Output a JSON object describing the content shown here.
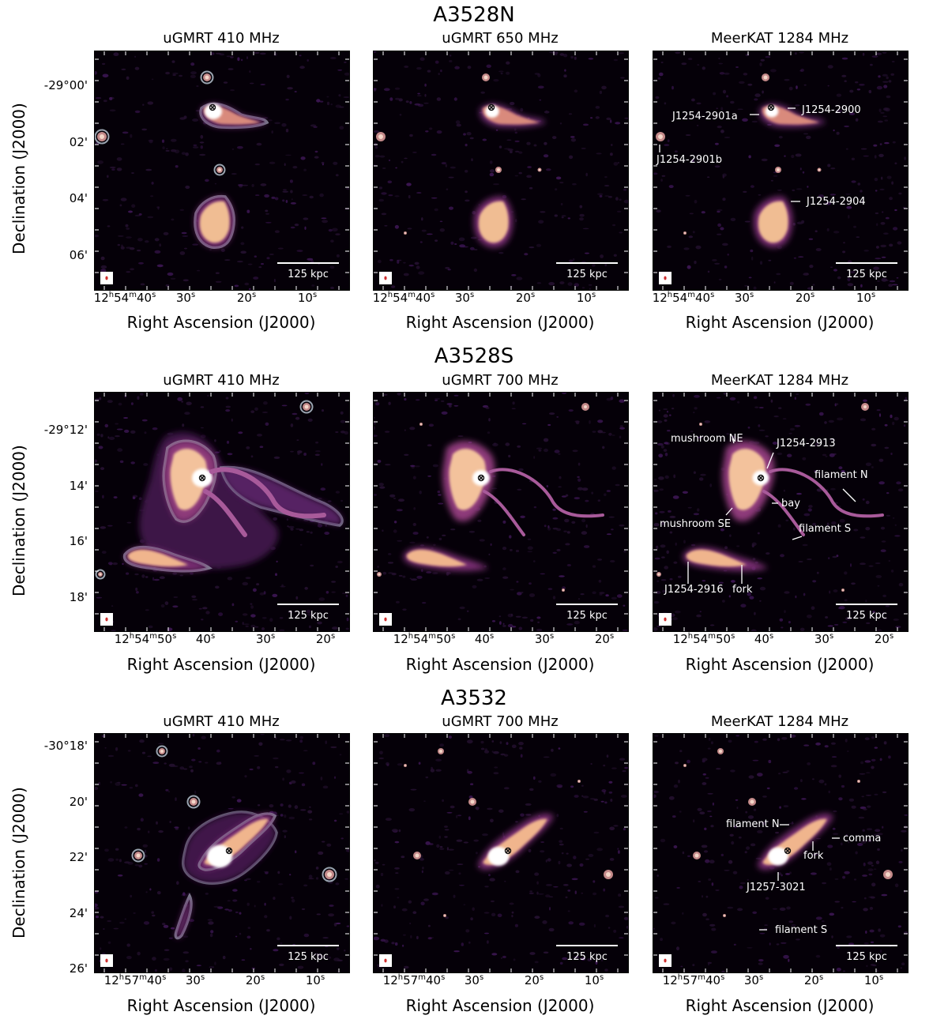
{
  "figure": {
    "rows": [
      {
        "title": "A3528N",
        "ylabel": "Declination (J2000)",
        "yticks": [
          {
            "text": "-29°00'",
            "dec_arcmin": 0
          },
          {
            "text": "02'",
            "dec_arcmin": 2
          },
          {
            "text": "04'",
            "dec_arcmin": 4
          },
          {
            "text": "06'",
            "dec_arcmin": 6
          }
        ],
        "xticks": [
          {
            "h": "12",
            "m": "54",
            "s": "40",
            "sec": 40
          },
          {
            "s": "30",
            "sec": 30
          },
          {
            "s": "20",
            "sec": 20
          },
          {
            "s": "10",
            "sec": 10
          }
        ],
        "xlabel": "Right Ascension (J2000)",
        "panels": [
          {
            "title": "uGMRT 410 MHz",
            "scalebar": "125 kpc",
            "labels": []
          },
          {
            "title": "uGMRT 650 MHz",
            "scalebar": "125 kpc",
            "labels": []
          },
          {
            "title": "MeerKAT 1284 MHz",
            "scalebar": "125 kpc",
            "labels": [
              "J1254-2901a",
              "J1254-2900",
              "J1254-2901b",
              "J1254-2904"
            ]
          }
        ]
      },
      {
        "title": "A3528S",
        "ylabel": "Declination (J2000)",
        "yticks": [
          {
            "text": "-29°12'",
            "dec_arcmin": 12
          },
          {
            "text": "14'",
            "dec_arcmin": 14
          },
          {
            "text": "16'",
            "dec_arcmin": 16
          },
          {
            "text": "18'",
            "dec_arcmin": 18
          }
        ],
        "xticks": [
          {
            "h": "12",
            "m": "54",
            "s": "50",
            "sec": 50
          },
          {
            "s": "40",
            "sec": 40
          },
          {
            "s": "30",
            "sec": 30
          },
          {
            "s": "20",
            "sec": 20
          }
        ],
        "xlabel": "Right Ascension (J2000)",
        "panels": [
          {
            "title": "uGMRT 410 MHz",
            "scalebar": "125 kpc",
            "labels": []
          },
          {
            "title": "uGMRT 700 MHz",
            "scalebar": "125 kpc",
            "labels": []
          },
          {
            "title": "MeerKAT 1284 MHz",
            "scalebar": "125 kpc",
            "labels": [
              "mushroom NE",
              "J1254-2913",
              "filament N",
              "bay",
              "mushroom SE",
              "filament S",
              "J1254-2916",
              "fork"
            ]
          }
        ]
      },
      {
        "title": "A3532",
        "ylabel": "Declination (J2000)",
        "yticks": [
          {
            "text": "-30°18'",
            "dec_arcmin": 18
          },
          {
            "text": "20'",
            "dec_arcmin": 20
          },
          {
            "text": "22'",
            "dec_arcmin": 22
          },
          {
            "text": "24'",
            "dec_arcmin": 24
          },
          {
            "text": "26'",
            "dec_arcmin": 26
          }
        ],
        "xticks": [
          {
            "h": "12",
            "m": "57",
            "s": "40",
            "sec": 40
          },
          {
            "s": "30",
            "sec": 30
          },
          {
            "s": "20",
            "sec": 20
          },
          {
            "s": "10",
            "sec": 10
          }
        ],
        "xlabel": "Right Ascension (J2000)",
        "panels": [
          {
            "title": "uGMRT 410 MHz",
            "scalebar": "125 kpc",
            "labels": []
          },
          {
            "title": "uGMRT 700 MHz",
            "scalebar": "125 kpc",
            "labels": []
          },
          {
            "title": "MeerKAT 1284 MHz",
            "scalebar": "125 kpc",
            "labels": [
              "filament N",
              "comma",
              "fork",
              "J1257-3021",
              "filament S"
            ]
          }
        ]
      }
    ]
  },
  "chart_data": {
    "type": "radio-image-grid",
    "colormap": [
      "#050008",
      "#3b0f4d",
      "#7a2a78",
      "#c75b7a",
      "#f2b38a",
      "#fff3e0"
    ],
    "contour_color": "#9aa4b0",
    "rows": [
      "A3528N",
      "A3528S",
      "A3532"
    ],
    "panels_per_row": [
      "uGMRT 410 MHz",
      "uGMRT 650/700 MHz",
      "MeerKAT 1284 MHz"
    ],
    "scalebar_kpc": 125
  }
}
